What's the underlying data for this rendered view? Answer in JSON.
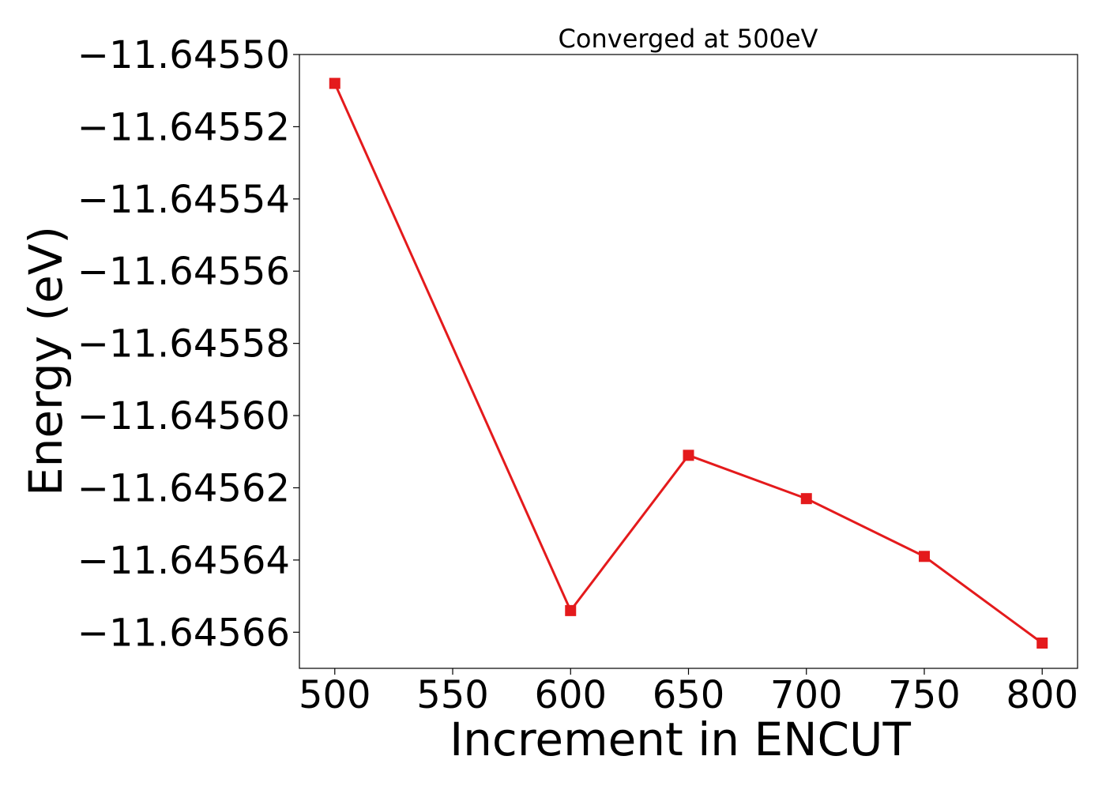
{
  "chart_data": {
    "type": "line",
    "title": "Converged at 500eV",
    "xlabel": "Increment in ENCUT",
    "ylabel": "Energy (eV)",
    "xlim": [
      485,
      815
    ],
    "ylim": [
      -11.64567,
      -11.6455
    ],
    "xticks": [
      500,
      550,
      600,
      650,
      700,
      750,
      800
    ],
    "yticks": [
      -11.6455,
      -11.64552,
      -11.64554,
      -11.64556,
      -11.64558,
      -11.6456,
      -11.64562,
      -11.64564,
      -11.64566
    ],
    "ytick_labels": [
      "−11.64550",
      "−11.64552",
      "−11.64554",
      "−11.64556",
      "−11.64558",
      "−11.64560",
      "−11.64562",
      "−11.64564",
      "−11.64566"
    ],
    "grid": false,
    "legend": null,
    "series": [
      {
        "color": "#e41a1c",
        "marker": "square",
        "x": [
          500,
          600,
          650,
          700,
          750,
          800
        ],
        "y": [
          -11.645508,
          -11.645654,
          -11.645611,
          -11.645623,
          -11.645639,
          -11.645663
        ]
      }
    ]
  }
}
